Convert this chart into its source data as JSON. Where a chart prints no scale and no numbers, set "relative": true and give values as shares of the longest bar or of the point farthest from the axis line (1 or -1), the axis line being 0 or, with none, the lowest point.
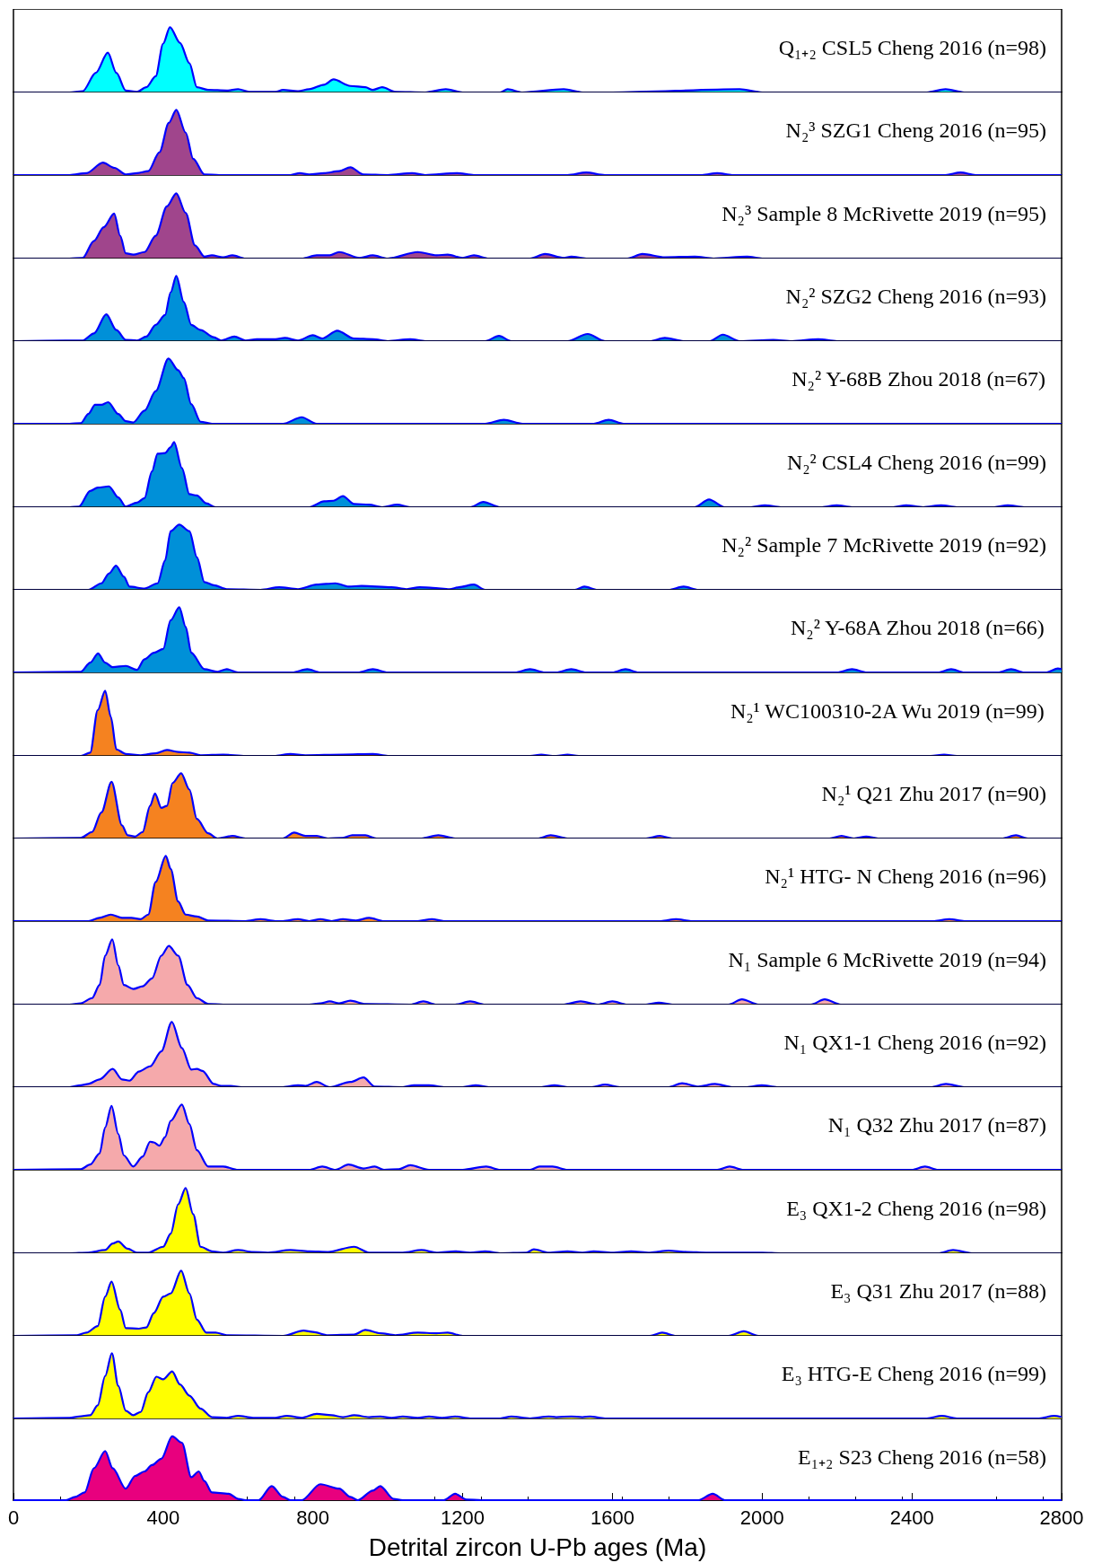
{
  "chart_data": [
    {
      "type": "area",
      "relative": true,
      "title": "Q₁₊₂ CSL5 Cheng 2016 (n=98)",
      "color": "#00ffff",
      "xlim": [
        0,
        2800
      ],
      "tick_labels": false,
      "x": [
        0,
        150,
        185,
        220,
        252,
        275,
        300,
        330,
        355,
        380,
        400,
        418,
        445,
        470,
        490,
        520,
        570,
        600,
        630,
        700,
        720,
        760,
        790,
        830,
        855,
        900,
        940,
        960,
        985,
        1020,
        1100,
        1155,
        1200,
        1300,
        1320,
        1360,
        1470,
        1520,
        1600,
        1940,
        2000,
        2440,
        2490,
        2540,
        2800
      ],
      "values": [
        0,
        0,
        0.02,
        0.3,
        0.61,
        0.3,
        0.03,
        0.01,
        0.08,
        0.25,
        0.75,
        1,
        0.76,
        0.45,
        0.08,
        0.04,
        0.03,
        0.05,
        0.01,
        0.01,
        0.04,
        0.02,
        0.05,
        0.12,
        0.2,
        0.1,
        0.08,
        0.04,
        0.08,
        0.01,
        0,
        0.05,
        0,
        0,
        0.05,
        0,
        0.05,
        0,
        0,
        0.05,
        0,
        0,
        0.05,
        0,
        0
      ]
    },
    {
      "type": "area",
      "relative": true,
      "title": "N₂³ SZG1 Cheng 2016 (n=95)",
      "color": "#a0458c",
      "xlim": [
        0,
        2800
      ],
      "tick_labels": false,
      "x": [
        0,
        150,
        195,
        239,
        270,
        300,
        330,
        360,
        390,
        415,
        435,
        460,
        480,
        510,
        550,
        740,
        765,
        790,
        830,
        870,
        900,
        935,
        1000,
        1065,
        1100,
        1185,
        1230,
        1480,
        1530,
        1580,
        1840,
        1880,
        1920,
        2490,
        2530,
        2570,
        2800
      ],
      "values": [
        0,
        0,
        0.03,
        0.19,
        0.11,
        0.01,
        0.03,
        0.06,
        0.35,
        0.8,
        1,
        0.65,
        0.25,
        0.01,
        0,
        0,
        0.03,
        0.01,
        0.03,
        0.06,
        0.12,
        0.01,
        0,
        0.03,
        0,
        0.03,
        0,
        0,
        0.04,
        0,
        0,
        0.03,
        0,
        0,
        0.04,
        0,
        0
      ]
    },
    {
      "type": "area",
      "relative": true,
      "title": "N₂³ Sample 8 McRivette 2019 (n=95)",
      "color": "#a0458c",
      "xlim": [
        0,
        2800
      ],
      "tick_labels": false,
      "x": [
        0,
        150,
        185,
        215,
        241,
        269,
        285,
        300,
        320,
        350,
        380,
        410,
        435,
        460,
        485,
        510,
        530,
        560,
        585,
        620,
        770,
        810,
        845,
        870,
        925,
        960,
        1000,
        1080,
        1130,
        1160,
        1200,
        1230,
        1270,
        1380,
        1420,
        1470,
        1490,
        1530,
        1640,
        1680,
        1740,
        1820,
        1870,
        1960,
        2000,
        2800
      ],
      "values": [
        0,
        0,
        0.01,
        0.27,
        0.48,
        0.69,
        0.35,
        0.08,
        0.06,
        0.1,
        0.35,
        0.8,
        1,
        0.7,
        0.2,
        0.03,
        0.05,
        0.02,
        0.05,
        0,
        0,
        0.05,
        0.05,
        0.1,
        0.01,
        0.05,
        0,
        0.1,
        0.05,
        0.06,
        0.01,
        0.05,
        0,
        0,
        0.07,
        0.01,
        0.03,
        0,
        0,
        0.07,
        0.02,
        0.03,
        0,
        0.03,
        0,
        0
      ]
    },
    {
      "type": "area",
      "relative": true,
      "title": "N₂² SZG2 Cheng 2016 (n=93)",
      "color": "#0090d8",
      "xlim": [
        0,
        2800
      ],
      "tick_labels": false,
      "x": [
        0,
        140,
        185,
        215,
        248,
        275,
        300,
        330,
        355,
        380,
        405,
        420,
        435,
        455,
        475,
        500,
        535,
        555,
        590,
        620,
        650,
        700,
        725,
        760,
        800,
        825,
        865,
        910,
        960,
        1000,
        1060,
        1100,
        1260,
        1297,
        1330,
        1480,
        1534,
        1580,
        1700,
        1740,
        1790,
        1860,
        1895,
        1940,
        2030,
        2080,
        2150,
        2200,
        2800
      ],
      "values": [
        0,
        0.01,
        0.01,
        0.12,
        0.41,
        0.17,
        0.02,
        0.01,
        0.07,
        0.25,
        0.4,
        0.75,
        1,
        0.6,
        0.25,
        0.17,
        0.06,
        0.01,
        0.07,
        0.01,
        0.03,
        0.03,
        0.05,
        0.01,
        0.09,
        0.04,
        0.16,
        0.04,
        0.03,
        0,
        0.03,
        0,
        0,
        0.08,
        0,
        0,
        0.11,
        0,
        0,
        0.05,
        0,
        0,
        0.1,
        0,
        0.02,
        0,
        0.03,
        0,
        0
      ]
    },
    {
      "type": "area",
      "relative": true,
      "title": "N₂² Y-68B Zhou 2018 (n=67)",
      "color": "#0090d8",
      "xlim": [
        0,
        2800
      ],
      "tick_labels": false,
      "x": [
        0,
        150,
        180,
        200,
        218,
        235,
        253,
        280,
        300,
        320,
        350,
        380,
        414,
        440,
        455,
        475,
        500,
        530,
        720,
        770,
        810,
        1260,
        1310,
        1360,
        1550,
        1590,
        1630,
        2800
      ],
      "values": [
        0,
        0,
        0.01,
        0.15,
        0.29,
        0.29,
        0.33,
        0.15,
        0.04,
        0.02,
        0.2,
        0.5,
        1,
        0.82,
        0.7,
        0.3,
        0.03,
        0,
        0,
        0.1,
        0,
        0,
        0.06,
        0,
        0,
        0.06,
        0,
        0
      ]
    },
    {
      "type": "area",
      "relative": true,
      "title": "N₂² CSL4 Cheng 2016 (n=99)",
      "color": "#0090d8",
      "xlim": [
        0,
        2800
      ],
      "tick_labels": false,
      "x": [
        0,
        150,
        175,
        205,
        225,
        255,
        280,
        300,
        330,
        350,
        370,
        385,
        405,
        420,
        429,
        450,
        470,
        490,
        515,
        540,
        790,
        830,
        855,
        880,
        910,
        950,
        985,
        1025,
        1060,
        1220,
        1255,
        1300,
        1820,
        1858,
        1900,
        1970,
        2007,
        2050,
        2160,
        2199,
        2240,
        2350,
        2385,
        2430,
        2478,
        2520,
        2620,
        2656,
        2700,
        2800
      ],
      "values": [
        0,
        0,
        0.01,
        0.25,
        0.3,
        0.32,
        0.15,
        0.01,
        0.07,
        0.14,
        0.55,
        0.82,
        0.83,
        0.92,
        1,
        0.6,
        0.2,
        0.18,
        0.06,
        0,
        0,
        0.09,
        0.1,
        0.17,
        0.05,
        0.04,
        0,
        0.04,
        0,
        0,
        0.08,
        0,
        0,
        0.12,
        0,
        0,
        0.03,
        0,
        0,
        0.03,
        0,
        0,
        0.03,
        0,
        0.03,
        0,
        0,
        0.03,
        0,
        0
      ]
    },
    {
      "type": "area",
      "relative": true,
      "title": "N₂² Sample 7 McRivette 2019 (n=92)",
      "color": "#0090d8",
      "xlim": [
        0,
        2800
      ],
      "tick_labels": false,
      "x": [
        0,
        200,
        235,
        255,
        274,
        295,
        310,
        350,
        385,
        405,
        420,
        443,
        470,
        490,
        510,
        535,
        570,
        660,
        710,
        760,
        810,
        860,
        895,
        930,
        1010,
        1050,
        1085,
        1120,
        1165,
        1190,
        1230,
        1260,
        1500,
        1525,
        1560,
        1750,
        1790,
        1830,
        2800
      ],
      "values": [
        0,
        0,
        0.1,
        0.25,
        0.37,
        0.2,
        0.05,
        0.02,
        0.1,
        0.45,
        0.9,
        1,
        0.9,
        0.5,
        0.12,
        0.07,
        0.01,
        0,
        0.04,
        0.01,
        0.08,
        0.1,
        0.05,
        0.06,
        0.04,
        0.01,
        0.04,
        0.03,
        0.01,
        0.04,
        0.08,
        0,
        0,
        0.05,
        0,
        0,
        0.05,
        0,
        0
      ]
    },
    {
      "type": "area",
      "relative": true,
      "title": "N₂² Y-68A Zhou 2018 (n=66)",
      "color": "#0090d8",
      "xlim": [
        0,
        2800
      ],
      "tick_labels": false,
      "x": [
        0,
        180,
        205,
        226,
        245,
        265,
        300,
        330,
        350,
        375,
        400,
        420,
        443,
        460,
        475,
        510,
        545,
        570,
        600,
        745,
        785,
        820,
        920,
        960,
        1000,
        1340,
        1380,
        1420,
        1450,
        1490,
        1530,
        1600,
        1635,
        1670,
        2200,
        2240,
        2280,
        2470,
        2505,
        2540,
        2630,
        2665,
        2700,
        2760,
        2790,
        2800
      ],
      "values": [
        0,
        0.01,
        0.15,
        0.29,
        0.15,
        0.08,
        0.1,
        0.04,
        0.2,
        0.3,
        0.36,
        0.8,
        1,
        0.7,
        0.3,
        0.05,
        0.01,
        0.05,
        0,
        0,
        0.05,
        0,
        0,
        0.05,
        0,
        0,
        0.05,
        0,
        0,
        0.05,
        0,
        0,
        0.05,
        0,
        0,
        0.05,
        0,
        0,
        0.05,
        0,
        0,
        0.05,
        0,
        0,
        0.06,
        0.05
      ]
    },
    {
      "type": "area",
      "relative": true,
      "title": "N₂¹ WC100310-2A Wu 2019 (n=99)",
      "color": "#f58220",
      "xlim": [
        0,
        2800
      ],
      "tick_labels": false,
      "x": [
        0,
        180,
        205,
        225,
        245,
        260,
        275,
        300,
        340,
        380,
        410,
        440,
        470,
        500,
        560,
        620,
        700,
        740,
        780,
        880,
        960,
        1000,
        1380,
        1410,
        1440,
        1450,
        1480,
        1510,
        2450,
        2486,
        2520,
        2800
      ],
      "values": [
        0,
        0,
        0.05,
        0.7,
        1,
        0.6,
        0.1,
        0.03,
        0.01,
        0.04,
        0.09,
        0.06,
        0.05,
        0.01,
        0.02,
        0,
        0,
        0.03,
        0.01,
        0.02,
        0.03,
        0,
        0,
        0.02,
        0,
        0,
        0.02,
        0,
        0,
        0.02,
        0,
        0
      ]
    },
    {
      "type": "area",
      "relative": true,
      "title": "N₂¹ Q21 Zhu 2017 (n=90)",
      "color": "#f58220",
      "xlim": [
        0,
        2800
      ],
      "tick_labels": false,
      "x": [
        0,
        180,
        210,
        235,
        262,
        290,
        305,
        325,
        345,
        365,
        378,
        395,
        410,
        425,
        448,
        470,
        490,
        520,
        545,
        585,
        620,
        720,
        750,
        780,
        810,
        840,
        880,
        905,
        940,
        970,
        1090,
        1135,
        1180,
        1400,
        1435,
        1480,
        1690,
        1727,
        1760,
        2180,
        2212,
        2245,
        2278,
        2310,
        2640,
        2678,
        2710,
        2800
      ],
      "values": [
        0,
        0.01,
        0.1,
        0.4,
        0.87,
        0.2,
        0.05,
        0.03,
        0.1,
        0.5,
        0.69,
        0.47,
        0.5,
        0.85,
        1,
        0.75,
        0.3,
        0.08,
        0,
        0.04,
        0,
        0,
        0.09,
        0.04,
        0.04,
        0,
        0.01,
        0.05,
        0.05,
        0,
        0,
        0.05,
        0,
        0,
        0.05,
        0,
        0,
        0.04,
        0,
        0,
        0.04,
        0,
        0.03,
        0,
        0,
        0.05,
        0,
        0
      ]
    },
    {
      "type": "area",
      "relative": true,
      "title": "N₂¹ HTG- N Cheng 2016 (n=96)",
      "color": "#f58220",
      "xlim": [
        0,
        2800
      ],
      "tick_labels": false,
      "x": [
        0,
        200,
        230,
        260,
        290,
        315,
        340,
        360,
        380,
        407,
        420,
        440,
        460,
        490,
        520,
        620,
        660,
        700,
        720,
        760,
        790,
        820,
        850,
        880,
        915,
        950,
        990,
        1080,
        1118,
        1150,
        1730,
        1770,
        1810,
        2460,
        2500,
        2540,
        2800
      ],
      "values": [
        0,
        0,
        0.05,
        0.1,
        0.05,
        0.05,
        0.03,
        0.1,
        0.6,
        1,
        0.8,
        0.3,
        0.1,
        0.07,
        0.01,
        0,
        0.03,
        0,
        0,
        0.03,
        0,
        0.03,
        0,
        0.03,
        0.01,
        0.05,
        0,
        0,
        0.03,
        0,
        0,
        0.03,
        0,
        0,
        0.03,
        0,
        0
      ]
    },
    {
      "type": "area",
      "relative": true,
      "title": "N₁ Sample 6 McRivette 2019 (n=94)",
      "color": "#f5a9ab",
      "xlim": [
        0,
        2800
      ],
      "tick_labels": false,
      "x": [
        0,
        150,
        180,
        210,
        230,
        245,
        264,
        280,
        295,
        320,
        345,
        370,
        395,
        415,
        440,
        465,
        490,
        520,
        560,
        790,
        820,
        845,
        870,
        900,
        940,
        1060,
        1095,
        1130,
        1180,
        1220,
        1260,
        1470,
        1515,
        1560,
        1600,
        1640,
        1690,
        1724,
        1760,
        1910,
        1946,
        1990,
        2130,
        2167,
        2210,
        2800
      ],
      "values": [
        0,
        0,
        0.02,
        0.1,
        0.3,
        0.75,
        1,
        0.6,
        0.3,
        0.24,
        0.28,
        0.4,
        0.75,
        0.9,
        0.75,
        0.3,
        0.1,
        0.01,
        0,
        0,
        0.02,
        0.05,
        0.02,
        0.06,
        0.01,
        0,
        0.05,
        0,
        0,
        0.05,
        0,
        0,
        0.05,
        0,
        0.05,
        0,
        0,
        0.03,
        0,
        0,
        0.08,
        0,
        0,
        0.08,
        0,
        0
      ]
    },
    {
      "type": "area",
      "relative": true,
      "title": "N₁ QX1-1 Cheng 2016 (n=92)",
      "color": "#f5a9ab",
      "xlim": [
        0,
        2800
      ],
      "tick_labels": false,
      "x": [
        0,
        150,
        180,
        200,
        230,
        265,
        290,
        310,
        335,
        365,
        395,
        423,
        450,
        475,
        490,
        505,
        535,
        555,
        580,
        610,
        720,
        760,
        780,
        810,
        845,
        900,
        935,
        965,
        1040,
        1070,
        1110,
        1150,
        1200,
        1235,
        1270,
        1410,
        1445,
        1480,
        1545,
        1580,
        1620,
        1750,
        1786,
        1830,
        1874,
        1920,
        1960,
        1999,
        2040,
        2450,
        2491,
        2540,
        2800
      ],
      "values": [
        0,
        0,
        0.03,
        0.05,
        0.12,
        0.28,
        0.12,
        0.1,
        0.24,
        0.32,
        0.55,
        1,
        0.6,
        0.27,
        0.28,
        0.25,
        0.05,
        0.02,
        0.02,
        0,
        0,
        0.03,
        0.02,
        0.08,
        0,
        0.08,
        0.15,
        0.01,
        0,
        0.03,
        0.03,
        0,
        0,
        0.03,
        0,
        0,
        0.03,
        0,
        0,
        0.04,
        0,
        0,
        0.06,
        0.01,
        0.05,
        0,
        0,
        0.03,
        0,
        0,
        0.05,
        0,
        0
      ]
    },
    {
      "type": "area",
      "relative": true,
      "title": "N₁ Q32 Zhu 2017 (n=87)",
      "color": "#f5a9ab",
      "xlim": [
        0,
        2800
      ],
      "tick_labels": false,
      "x": [
        0,
        180,
        205,
        230,
        245,
        262,
        280,
        295,
        320,
        345,
        365,
        375,
        390,
        405,
        420,
        450,
        470,
        490,
        520,
        560,
        600,
        790,
        825,
        860,
        895,
        935,
        965,
        990,
        1030,
        1060,
        1110,
        1200,
        1263,
        1300,
        1380,
        1405,
        1440,
        1480,
        1880,
        1913,
        1950,
        2400,
        2435,
        2470,
        2800
      ],
      "values": [
        0,
        0.01,
        0.08,
        0.25,
        0.65,
        0.98,
        0.55,
        0.22,
        0.05,
        0.2,
        0.43,
        0.42,
        0.37,
        0.5,
        0.75,
        1,
        0.7,
        0.3,
        0.05,
        0.05,
        0,
        0,
        0.05,
        0,
        0.08,
        0.02,
        0.05,
        0,
        0.01,
        0.07,
        0,
        0,
        0.05,
        0,
        0,
        0.05,
        0.05,
        0,
        0,
        0.05,
        0,
        0,
        0.05,
        0,
        0
      ]
    },
    {
      "type": "area",
      "relative": true,
      "title": "E₃ QX1-2 Cheng 2016 (n=98)",
      "color": "#ffff00",
      "xlim": [
        0,
        2800
      ],
      "tick_labels": false,
      "x": [
        0,
        150,
        200,
        245,
        265,
        280,
        305,
        330,
        360,
        400,
        420,
        440,
        460,
        480,
        500,
        530,
        560,
        600,
        640,
        680,
        740,
        790,
        840,
        910,
        950,
        1040,
        1090,
        1130,
        1180,
        1220,
        1260,
        1300,
        1370,
        1390,
        1430,
        1480,
        1520,
        1550,
        1600,
        1650,
        1700,
        1750,
        1800,
        1850,
        2000,
        2050,
        2470,
        2510,
        2560,
        2800
      ],
      "values": [
        0,
        0,
        0.01,
        0.05,
        0.15,
        0.18,
        0.07,
        0.01,
        0.01,
        0.1,
        0.3,
        0.75,
        1,
        0.6,
        0.1,
        0.03,
        0.01,
        0.05,
        0.02,
        0.01,
        0.05,
        0.03,
        0.02,
        0.1,
        0.01,
        0.01,
        0.05,
        0.01,
        0.03,
        0.01,
        0.03,
        0,
        0.01,
        0.06,
        0.01,
        0.03,
        0.01,
        0.03,
        0.01,
        0.03,
        0.01,
        0.04,
        0.02,
        0.01,
        0.01,
        0,
        0,
        0.05,
        0,
        0
      ]
    },
    {
      "type": "area",
      "relative": true,
      "title": "E₃ Q31 Zhu 2017 (n=88)",
      "color": "#ffff00",
      "xlim": [
        0,
        2800
      ],
      "tick_labels": false,
      "x": [
        0,
        170,
        195,
        225,
        245,
        262,
        285,
        300,
        335,
        355,
        375,
        400,
        420,
        448,
        470,
        490,
        515,
        540,
        570,
        720,
        775,
        800,
        840,
        910,
        940,
        980,
        1020,
        1080,
        1130,
        1160,
        1200,
        1700,
        1733,
        1770,
        1910,
        1951,
        1990,
        2800
      ],
      "values": [
        0,
        0.01,
        0.05,
        0.15,
        0.6,
        0.83,
        0.4,
        0.12,
        0.11,
        0.13,
        0.35,
        0.6,
        0.65,
        1,
        0.65,
        0.25,
        0.05,
        0.05,
        0.01,
        0,
        0.08,
        0.06,
        0.01,
        0.02,
        0.09,
        0.04,
        0.01,
        0.05,
        0.04,
        0.05,
        0,
        0,
        0.05,
        0,
        0,
        0.07,
        0,
        0
      ]
    },
    {
      "type": "area",
      "relative": true,
      "title": "E₃ HTG-E Cheng 2016 (n=99)",
      "color": "#ffff00",
      "xlim": [
        0,
        2800
      ],
      "tick_labels": false,
      "x": [
        0,
        150,
        175,
        205,
        225,
        245,
        263,
        280,
        300,
        320,
        340,
        360,
        382,
        400,
        424,
        445,
        470,
        500,
        530,
        570,
        600,
        640,
        700,
        730,
        770,
        810,
        850,
        880,
        910,
        950,
        980,
        1010,
        1040,
        1080,
        1110,
        1145,
        1180,
        1220,
        1300,
        1330,
        1380,
        1430,
        1450,
        1490,
        1520,
        1540,
        1580,
        2440,
        2480,
        2520,
        2740,
        2780,
        2800
      ],
      "values": [
        0,
        0.01,
        0.03,
        0.05,
        0.2,
        0.65,
        1,
        0.5,
        0.12,
        0.05,
        0.1,
        0.4,
        0.64,
        0.6,
        0.72,
        0.52,
        0.35,
        0.15,
        0.02,
        0.01,
        0.04,
        0.01,
        0.01,
        0.04,
        0.01,
        0.07,
        0.05,
        0.02,
        0.05,
        0.02,
        0.03,
        0.01,
        0.03,
        0.01,
        0.03,
        0.01,
        0.03,
        0,
        0,
        0.03,
        0,
        0.03,
        0.02,
        0.03,
        0.02,
        0.03,
        0,
        0,
        0.04,
        0,
        0,
        0.04,
        0.02
      ]
    },
    {
      "type": "area",
      "relative": true,
      "title": "E₁₊₂ S23 Cheng 2016 (n=58)",
      "color": "#e8007e",
      "xlim": [
        0,
        2800
      ],
      "tick_labels": "x",
      "xticks": [
        0,
        400,
        800,
        1200,
        1600,
        2000,
        2400,
        2800
      ],
      "xlabel": "Detrital zircon U-Pb ages (Ma)",
      "x": [
        0,
        140,
        165,
        190,
        215,
        245,
        265,
        300,
        325,
        350,
        370,
        395,
        424,
        450,
        475,
        495,
        510,
        530,
        575,
        600,
        620,
        655,
        690,
        720,
        740,
        770,
        820,
        870,
        900,
        920,
        960,
        980,
        1015,
        1040,
        1150,
        1180,
        1210,
        1250,
        1830,
        1868,
        1900,
        2800
      ],
      "values": [
        0,
        0,
        0.05,
        0.12,
        0.5,
        0.77,
        0.5,
        0.18,
        0.38,
        0.45,
        0.55,
        0.65,
        1,
        0.9,
        0.36,
        0.45,
        0.3,
        0.12,
        0.1,
        0.02,
        0,
        0,
        0.22,
        0.05,
        0,
        0,
        0.25,
        0.18,
        0.05,
        0,
        0.15,
        0.22,
        0.02,
        0,
        0,
        0.1,
        0.01,
        0,
        0,
        0.1,
        0,
        0
      ]
    }
  ]
}
